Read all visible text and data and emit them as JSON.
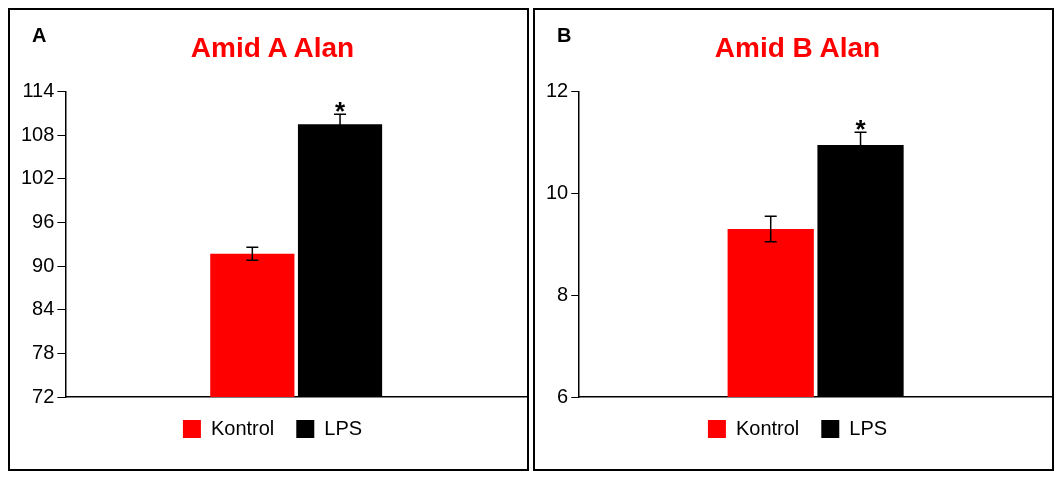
{
  "chart_data": [
    {
      "type": "bar",
      "title": "Amid A Alan",
      "categories": [
        null
      ],
      "series": [
        {
          "name": "Kontrol",
          "color": "#ff0000",
          "values": [
            91.7
          ],
          "errors": [
            0.9
          ]
        },
        {
          "name": "LPS",
          "color": "#000000",
          "values": [
            109.5
          ],
          "errors": [
            1.4
          ]
        }
      ],
      "ylim": [
        72,
        114
      ],
      "yticks": [
        72,
        78,
        84,
        90,
        96,
        102,
        108,
        114
      ],
      "grid": false,
      "legend": "bottom",
      "annotations": [
        "A",
        "*"
      ]
    },
    {
      "type": "bar",
      "title": "Amid B Alan",
      "categories": [
        null
      ],
      "series": [
        {
          "name": "Kontrol",
          "color": "#ff0000",
          "values": [
            9.3
          ],
          "errors": [
            0.25
          ]
        },
        {
          "name": "LPS",
          "color": "#000000",
          "values": [
            10.95
          ],
          "errors": [
            0.25
          ]
        }
      ],
      "ylim": [
        6,
        12
      ],
      "yticks": [
        6,
        8,
        10,
        12
      ],
      "grid": false,
      "legend": "bottom",
      "annotations": [
        "B",
        "*"
      ]
    }
  ]
}
